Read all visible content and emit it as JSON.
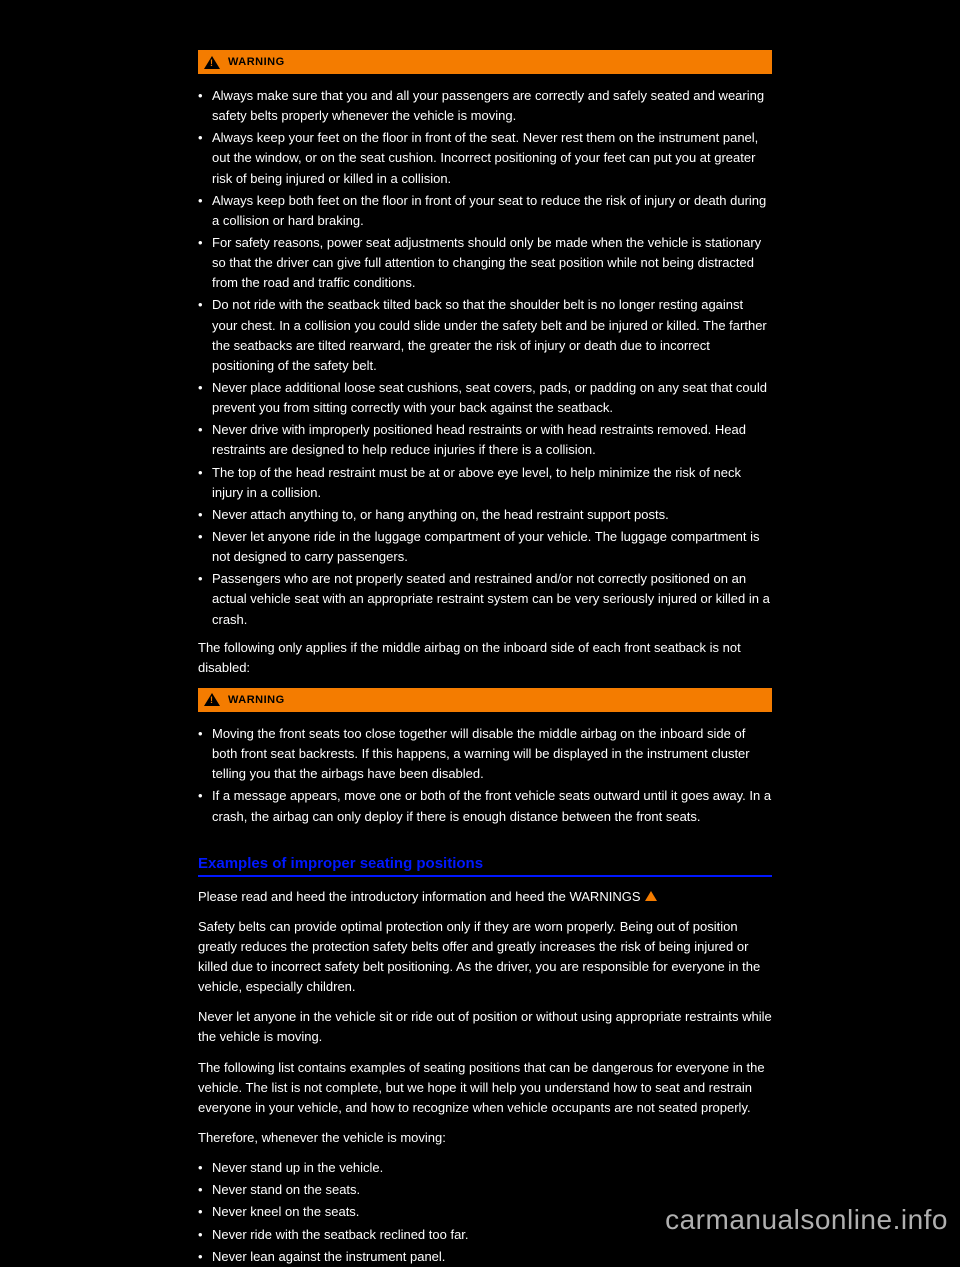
{
  "warning1": {
    "label": "WARNING",
    "bullets": [
      "Always make sure that you and all your passengers are correctly and safely seated and wearing safety belts properly whenever the vehicle is moving.",
      "Always keep your feet on the floor in front of the seat. Never rest them on the instrument panel, out the window, or on the seat cushion. Incorrect positioning of your feet can put you at greater risk of being injured or killed in a collision.",
      "Always keep both feet on the floor in front of your seat to reduce the risk of injury or death during a collision or hard braking.",
      "For safety reasons, power seat adjustments should only be made when the vehicle is stationary so that the driver can give full attention to changing the seat position while not being distracted from the road and traffic conditions.",
      "Do not ride with the seatback tilted back so that the shoulder belt is no longer resting against your chest. In a collision you could slide under the safety belt and be injured or killed. The farther the seatbacks are tilted rearward, the greater the risk of injury or death due to incorrect positioning of the safety belt.",
      "Never place additional loose seat cushions, seat covers, pads, or padding on any seat that could prevent you from sitting correctly with your back against the seatback.",
      "Never drive with improperly positioned head restraints or with head restraints removed. Head restraints are designed to help reduce injuries if there is a collision.",
      "The top of the head restraint must be at or above eye level, to help minimize the risk of neck injury in a collision.",
      "Never attach anything to, or hang anything on, the head restraint support posts.",
      "Never let anyone ride in the luggage compartment of your vehicle. The luggage compartment is not designed to carry passengers.",
      "Passengers who are not properly seated and restrained and/or not correctly positioned on an actual vehicle seat with an appropriate restraint system can be very seriously injured or killed in a crash."
    ]
  },
  "para_between": "The following only applies if the middle airbag on the inboard side of each front seatback is not disabled:",
  "warning2": {
    "label": "WARNING",
    "bullets": [
      "Moving the front seats too close together will disable the middle airbag on the inboard side of both front seat backrests. If this happens, a warning will be displayed in the instrument cluster telling you that the airbags have been disabled.",
      "If a message appears, move one or both of the front vehicle seats outward until it goes away. In a crash, the airbag can only deploy if there is enough distance between the front seats."
    ]
  },
  "section_title": "Examples of improper seating positions",
  "para_after1_part1": "Please read and heed the introductory information and heed the WARNINGS ",
  "para_after1_part2": "",
  "para_after2": "Safety belts can provide optimal protection only if they are worn properly. Being out of position greatly reduces the protection safety belts offer and greatly increases the risk of being injured or killed due to incorrect safety belt positioning. As the driver, you are responsible for everyone in the vehicle, especially children.",
  "para_after3": "Never let anyone in the vehicle sit or ride out of position or without using appropriate restraints while the vehicle is moving.",
  "para_after4": "The following list contains examples of seating positions that can be dangerous for everyone in the vehicle. The list is not complete, but we hope it will help you understand how to seat and restrain everyone in your vehicle, and how to recognize when vehicle occupants are not seated properly.",
  "para_after5": "Therefore, whenever the vehicle is moving:",
  "final_bullets": [
    "Never stand up in the vehicle.",
    "Never stand on the seats.",
    "Never kneel on the seats.",
    "Never ride with the seatback reclined too far.",
    "Never lean against the instrument panel."
  ],
  "watermark": "carmanualsonline.info"
}
